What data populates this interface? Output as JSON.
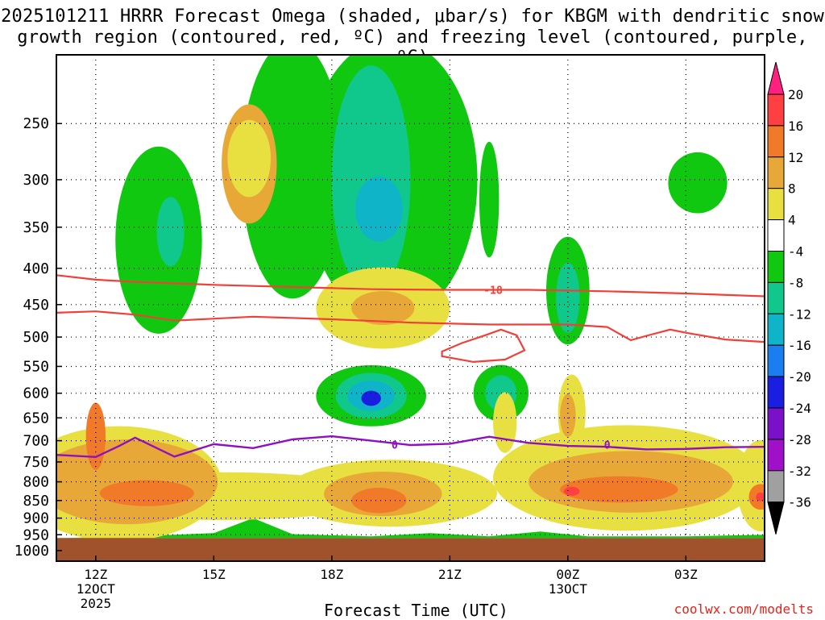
{
  "chart_data": {
    "type": "heatmap",
    "title_line1": "2025101211 HRRR Forecast Omega (shaded, μbar/s) for KBGM with dendritic snow",
    "title_line2": "growth region (contoured, red, ºC) and freezing level (contoured, purple, ºC)",
    "xlabel": "Forecast Time (UTC)",
    "ylabel": "",
    "credit": "coolwx.com/modelts",
    "x_range_hours": [
      11,
      29
    ],
    "y_range_hpa": [
      1035,
      200
    ],
    "y_ticks": [
      250,
      300,
      350,
      400,
      450,
      500,
      550,
      600,
      650,
      700,
      750,
      800,
      850,
      900,
      950,
      1000
    ],
    "x_ticks": [
      {
        "hour": 12,
        "line1": "12Z",
        "line2": "12OCT",
        "line3": "2025"
      },
      {
        "hour": 15,
        "line1": "15Z"
      },
      {
        "hour": 18,
        "line1": "18Z"
      },
      {
        "hour": 21,
        "line1": "21Z"
      },
      {
        "hour": 24,
        "line1": "00Z",
        "line2": "13OCT"
      },
      {
        "hour": 27,
        "line1": "03Z"
      }
    ],
    "colorbar": {
      "labels": [
        "20",
        "16",
        "12",
        "8",
        "4",
        "-4",
        "-8",
        "-12",
        "-16",
        "-20",
        "-24",
        "-28",
        "-32",
        "-36"
      ],
      "colors": [
        "#ff2080",
        "#ff4040",
        "#f07a28",
        "#e8a838",
        "#e8e040",
        "#ffffff",
        "#10c810",
        "#10c88c",
        "#10b4c8",
        "#1a7ef0",
        "#1a1ee0",
        "#7a10c8",
        "#a010c8",
        "#a0a0a0",
        "#000000"
      ]
    },
    "surface_color": "#a0522d",
    "surface_pressure_hpa": 960,
    "contour_labels": {
      "dgz": "-18",
      "freezing": "0"
    },
    "freezing_level": [
      {
        "h": 11.0,
        "p": 733
      },
      {
        "h": 12.0,
        "p": 738
      },
      {
        "h": 12.6,
        "p": 712
      },
      {
        "h": 13.0,
        "p": 693
      },
      {
        "h": 14.0,
        "p": 737
      },
      {
        "h": 15.0,
        "p": 708
      },
      {
        "h": 16.0,
        "p": 717
      },
      {
        "h": 17.0,
        "p": 697
      },
      {
        "h": 18.0,
        "p": 690
      },
      {
        "h": 19.0,
        "p": 700
      },
      {
        "h": 20.0,
        "p": 710
      },
      {
        "h": 21.0,
        "p": 707
      },
      {
        "h": 22.0,
        "p": 691
      },
      {
        "h": 23.0,
        "p": 705
      },
      {
        "h": 24.0,
        "p": 712
      },
      {
        "h": 25.0,
        "p": 714
      },
      {
        "h": 26.0,
        "p": 720
      },
      {
        "h": 27.0,
        "p": 719
      },
      {
        "h": 28.0,
        "p": 715
      },
      {
        "h": 29.0,
        "p": 714
      }
    ],
    "dgz_upper": [
      {
        "h": 11.0,
        "p": 409
      },
      {
        "h": 12.0,
        "p": 415
      },
      {
        "h": 13.0,
        "p": 418
      },
      {
        "h": 15.0,
        "p": 422
      },
      {
        "h": 17.0,
        "p": 425
      },
      {
        "h": 19.0,
        "p": 428
      },
      {
        "h": 21.0,
        "p": 429
      },
      {
        "h": 23.0,
        "p": 429
      },
      {
        "h": 25.0,
        "p": 431
      },
      {
        "h": 27.0,
        "p": 434
      },
      {
        "h": 29.0,
        "p": 438
      }
    ],
    "dgz_lower": [
      {
        "h": 11.0,
        "p": 462
      },
      {
        "h": 12.0,
        "p": 460
      },
      {
        "h": 13.0,
        "p": 465
      },
      {
        "h": 14.0,
        "p": 474
      },
      {
        "h": 16.0,
        "p": 468
      },
      {
        "h": 18.0,
        "p": 472
      },
      {
        "h": 20.0,
        "p": 477
      },
      {
        "h": 22.0,
        "p": 480
      },
      {
        "h": 24.0,
        "p": 480
      },
      {
        "h": 25.0,
        "p": 484
      },
      {
        "h": 25.6,
        "p": 505
      },
      {
        "h": 26.0,
        "p": 498
      },
      {
        "h": 26.6,
        "p": 488
      },
      {
        "h": 27.0,
        "p": 493
      },
      {
        "h": 28.0,
        "p": 504
      },
      {
        "h": 29.0,
        "p": 508
      }
    ],
    "dgz_closed": [
      {
        "h": 20.8,
        "p": 524
      },
      {
        "h": 21.3,
        "p": 510
      },
      {
        "h": 21.9,
        "p": 497
      },
      {
        "h": 22.3,
        "p": 488
      },
      {
        "h": 22.7,
        "p": 497
      },
      {
        "h": 22.9,
        "p": 522
      },
      {
        "h": 22.4,
        "p": 538
      },
      {
        "h": 21.6,
        "p": 542
      },
      {
        "h": 20.8,
        "p": 532
      }
    ],
    "omega_regions": [
      {
        "level": 4,
        "h": 15.2,
        "p": 838,
        "rh": 4.2,
        "rp": 65,
        "note": "rising ridge lower"
      },
      {
        "level": 4,
        "h": 12.6,
        "p": 805,
        "rh": 2.6,
        "rp": 150
      },
      {
        "level": 8,
        "h": 12.8,
        "p": 800,
        "rh": 2.3,
        "rp": 110
      },
      {
        "level": 12,
        "h": 13.3,
        "p": 830,
        "rh": 1.2,
        "rp": 35
      },
      {
        "level": 12,
        "h": 12.0,
        "p": 690,
        "rh": 0.25,
        "rp": 75
      },
      {
        "level": 4,
        "h": 19.5,
        "p": 830,
        "rh": 2.7,
        "rp": 90
      },
      {
        "level": 8,
        "h": 19.3,
        "p": 832,
        "rh": 1.5,
        "rp": 60
      },
      {
        "level": 12,
        "h": 19.2,
        "p": 850,
        "rh": 0.7,
        "rp": 35
      },
      {
        "level": 4,
        "h": 25.5,
        "p": 790,
        "rh": 3.4,
        "rp": 135
      },
      {
        "level": 8,
        "h": 25.6,
        "p": 800,
        "rh": 2.6,
        "rp": 80
      },
      {
        "level": 12,
        "h": 25.3,
        "p": 820,
        "rh": 1.5,
        "rp": 35
      },
      {
        "level": 16,
        "h": 24.1,
        "p": 825,
        "rh": 0.2,
        "rp": 12
      },
      {
        "level": 4,
        "h": 28.9,
        "p": 810,
        "rh": 0.6,
        "rp": 120
      },
      {
        "level": 12,
        "h": 28.9,
        "p": 840,
        "rh": 0.3,
        "rp": 35
      },
      {
        "level": 16,
        "h": 28.9,
        "p": 840,
        "rh": 0.12,
        "rp": 12
      },
      {
        "level": -4,
        "h": 17.0,
        "p": 290,
        "rh": 1.3,
        "rp": 120,
        "note": "top block"
      },
      {
        "level": -4,
        "h": 19.5,
        "p": 300,
        "rh": 2.2,
        "rp": 135
      },
      {
        "level": -8,
        "h": 19.0,
        "p": 300,
        "rh": 1.0,
        "rp": 110
      },
      {
        "level": -12,
        "h": 19.2,
        "p": 330,
        "rh": 0.6,
        "rp": 35
      },
      {
        "level": 8,
        "h": 15.9,
        "p": 285,
        "rh": 0.7,
        "rp": 55
      },
      {
        "level": 4,
        "h": 15.9,
        "p": 280,
        "rh": 0.55,
        "rp": 35
      },
      {
        "level": -4,
        "h": 13.6,
        "p": 365,
        "rh": 1.1,
        "rp": 110
      },
      {
        "level": -8,
        "h": 13.9,
        "p": 355,
        "rh": 0.35,
        "rp": 40
      },
      {
        "level": 4,
        "h": 19.3,
        "p": 455,
        "rh": 1.7,
        "rp": 60
      },
      {
        "level": 8,
        "h": 19.3,
        "p": 455,
        "rh": 0.8,
        "rp": 25
      },
      {
        "level": -4,
        "h": 19.0,
        "p": 605,
        "rh": 1.4,
        "rp": 60
      },
      {
        "level": -8,
        "h": 19.0,
        "p": 605,
        "rh": 0.9,
        "rp": 45
      },
      {
        "level": -12,
        "h": 19.0,
        "p": 605,
        "rh": 0.6,
        "rp": 30
      },
      {
        "level": -20,
        "h": 19.0,
        "p": 610,
        "rh": 0.25,
        "rp": 15
      },
      {
        "level": -4,
        "h": 22.3,
        "p": 600,
        "rh": 0.7,
        "rp": 55
      },
      {
        "level": -8,
        "h": 22.3,
        "p": 600,
        "rh": 0.4,
        "rp": 35
      },
      {
        "level": -4,
        "h": 24.0,
        "p": 430,
        "rh": 0.55,
        "rp": 75
      },
      {
        "level": -8,
        "h": 24.0,
        "p": 440,
        "rh": 0.3,
        "rp": 50
      },
      {
        "level": -4,
        "h": 27.3,
        "p": 303,
        "rh": 0.75,
        "rp": 30
      },
      {
        "level": -4,
        "h": 22.0,
        "p": 320,
        "rh": 0.25,
        "rp": 60
      },
      {
        "level": 4,
        "h": 22.4,
        "p": 660,
        "rh": 0.3,
        "rp": 65
      },
      {
        "level": 4,
        "h": 24.1,
        "p": 640,
        "rh": 0.35,
        "rp": 80
      },
      {
        "level": 8,
        "h": 24.0,
        "p": 645,
        "rh": 0.2,
        "rp": 45
      }
    ]
  }
}
